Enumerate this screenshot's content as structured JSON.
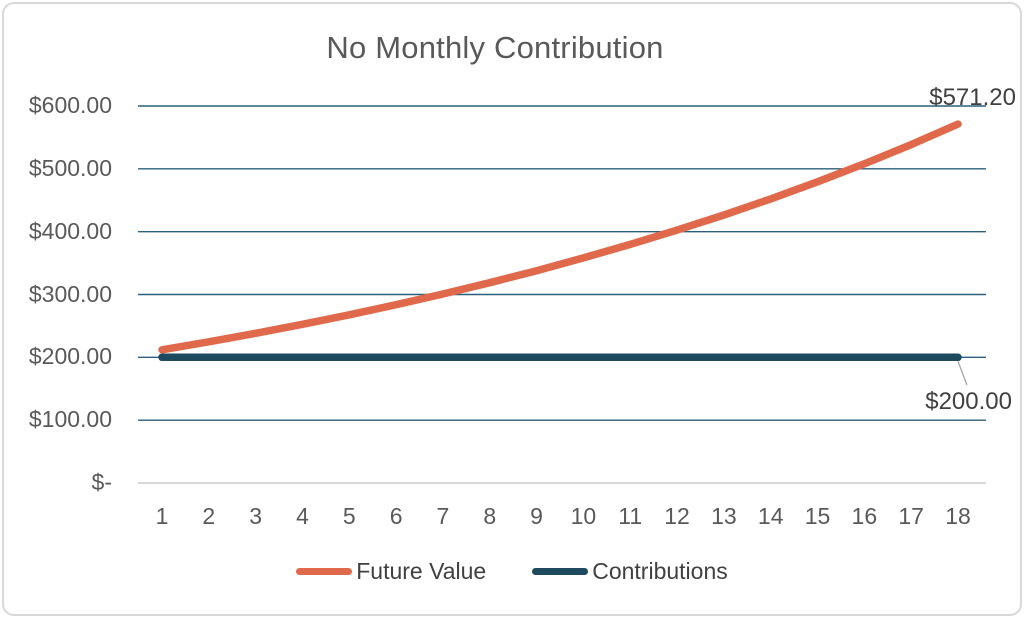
{
  "chart_data": {
    "type": "line",
    "title": "No Monthly Contribution",
    "categories": [
      1,
      2,
      3,
      4,
      5,
      6,
      7,
      8,
      9,
      10,
      11,
      12,
      13,
      14,
      15,
      16,
      17,
      18
    ],
    "series": [
      {
        "name": "Future Value",
        "color": "#E0694C",
        "values": [
          212.0,
          224.72,
          238.2,
          252.5,
          267.65,
          283.7,
          300.73,
          318.77,
          337.9,
          358.17,
          379.66,
          402.44,
          426.59,
          452.18,
          479.31,
          508.07,
          538.55,
          571.2
        ],
        "end_label": "$571.20"
      },
      {
        "name": "Contributions",
        "color": "#1D4A5F",
        "values": [
          200,
          200,
          200,
          200,
          200,
          200,
          200,
          200,
          200,
          200,
          200,
          200,
          200,
          200,
          200,
          200,
          200,
          200
        ],
        "end_label": "$200.00"
      }
    ],
    "ylim": [
      0,
      600
    ],
    "yticks": [
      {
        "label": "$600.00",
        "value": 600
      },
      {
        "label": "$500.00",
        "value": 500
      },
      {
        "label": "$400.00",
        "value": 400
      },
      {
        "label": "$300.00",
        "value": 300
      },
      {
        "label": "$200.00",
        "value": 200
      },
      {
        "label": "$100.00",
        "value": 100
      },
      {
        "label": "$-",
        "value": 0
      }
    ],
    "grid": "horizontal",
    "grid_color": "#2C5F7C",
    "zero_axis_color": "#D9D9D9",
    "legend_position": "bottom"
  }
}
